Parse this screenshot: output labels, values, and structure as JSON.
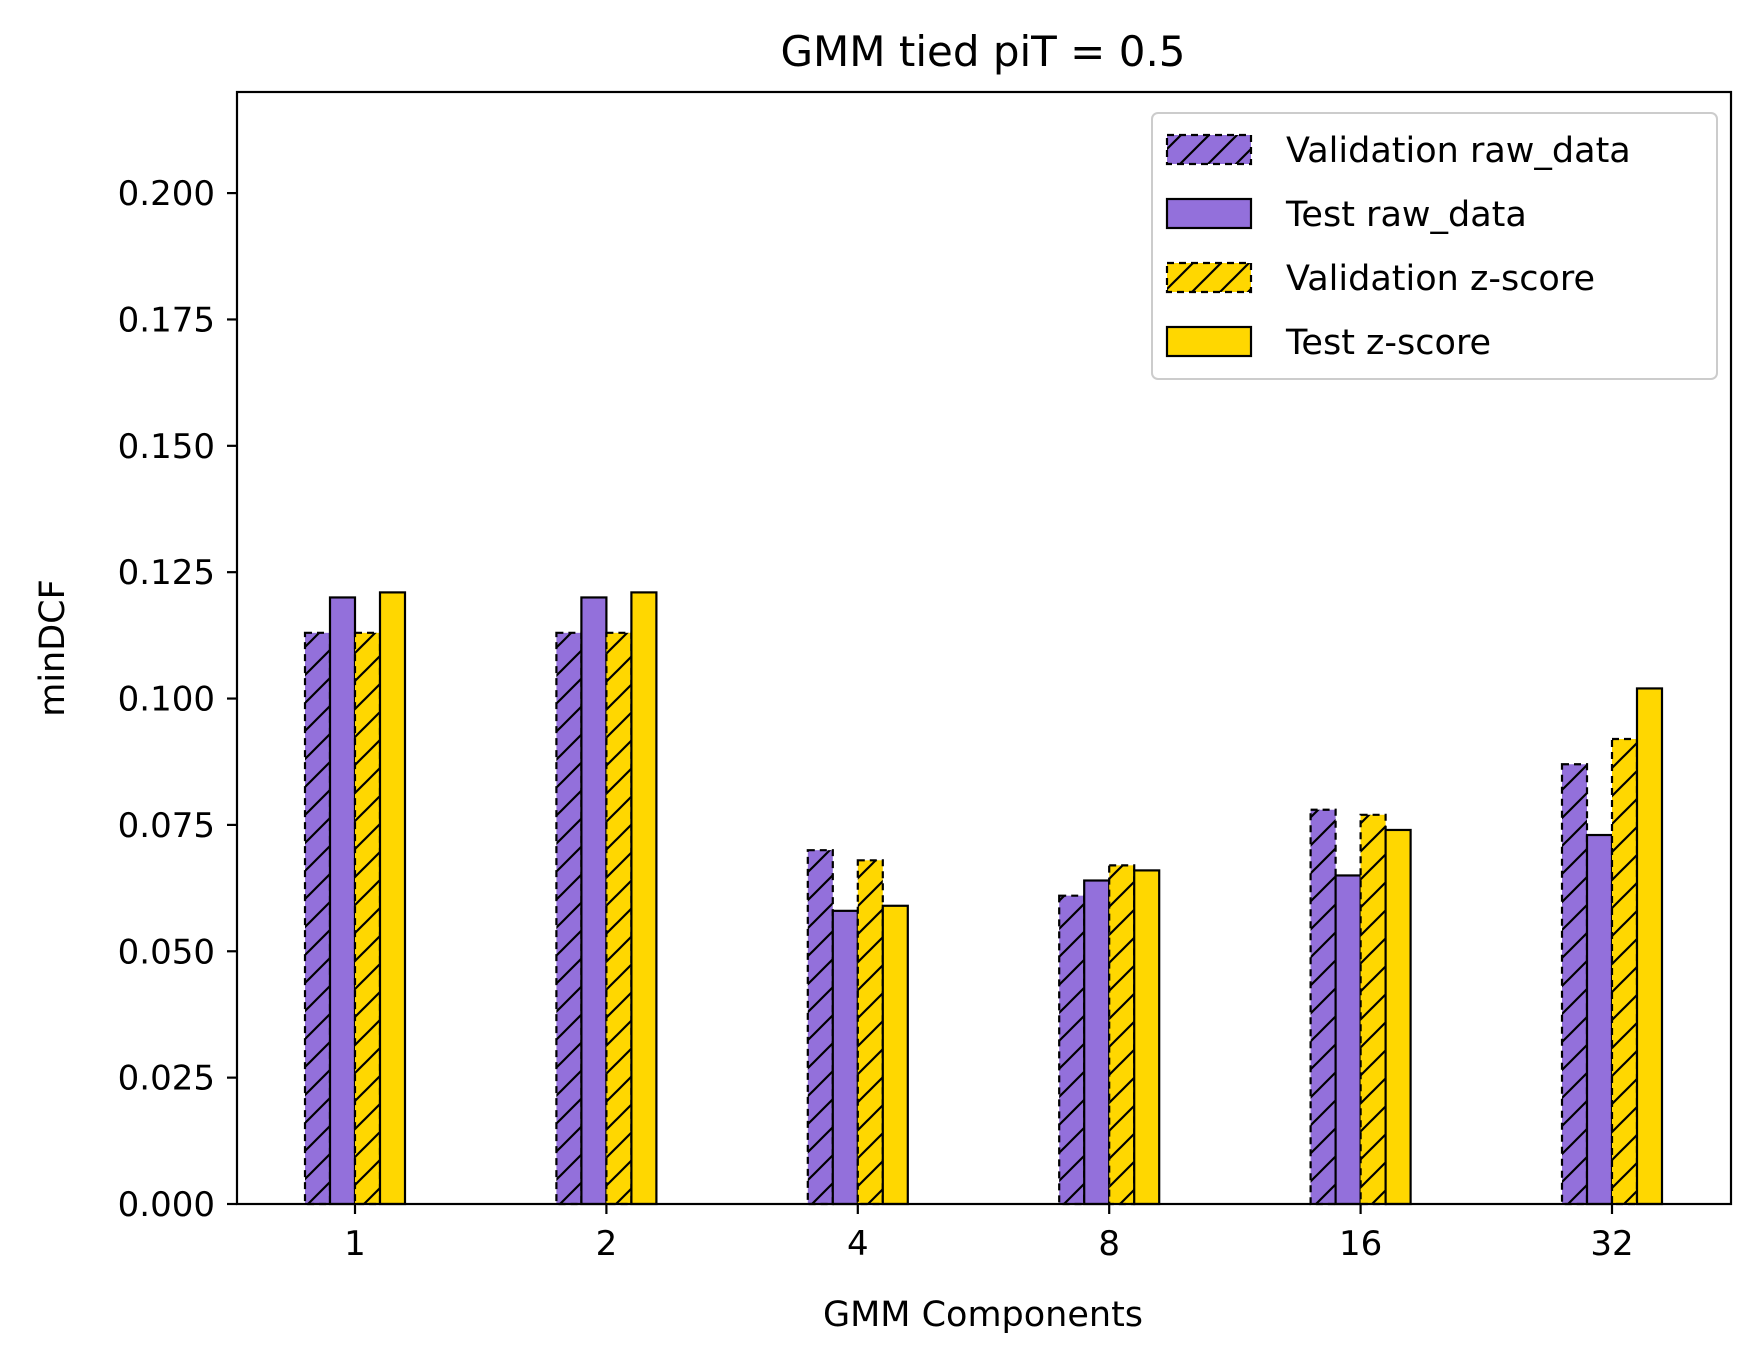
{
  "chart_data": {
    "type": "bar",
    "title": "GMM tied piT = 0.5",
    "xlabel": "GMM Components",
    "ylabel": "minDCF",
    "categories": [
      "1",
      "2",
      "4",
      "8",
      "16",
      "32"
    ],
    "ylim": [
      0,
      0.22
    ],
    "yticks": [
      "0.000",
      "0.025",
      "0.050",
      "0.075",
      "0.100",
      "0.125",
      "0.150",
      "0.175",
      "0.200"
    ],
    "grid": false,
    "legend_position": "top-right",
    "series": [
      {
        "name": "Validation raw_data",
        "values": [
          0.113,
          0.113,
          0.07,
          0.061,
          0.078,
          0.087
        ],
        "color": "#9370DB",
        "hatch": true,
        "dashed": true
      },
      {
        "name": "Test raw_data",
        "values": [
          0.12,
          0.12,
          0.058,
          0.064,
          0.065,
          0.073
        ],
        "color": "#9370DB",
        "hatch": false,
        "dashed": false
      },
      {
        "name": "Validation z-score",
        "values": [
          0.113,
          0.113,
          0.068,
          0.067,
          0.077,
          0.092
        ],
        "color": "#FFD700",
        "hatch": true,
        "dashed": true
      },
      {
        "name": "Test z-score",
        "values": [
          0.121,
          0.121,
          0.059,
          0.066,
          0.074,
          0.102
        ],
        "color": "#FFD700",
        "hatch": false,
        "dashed": false
      }
    ]
  }
}
